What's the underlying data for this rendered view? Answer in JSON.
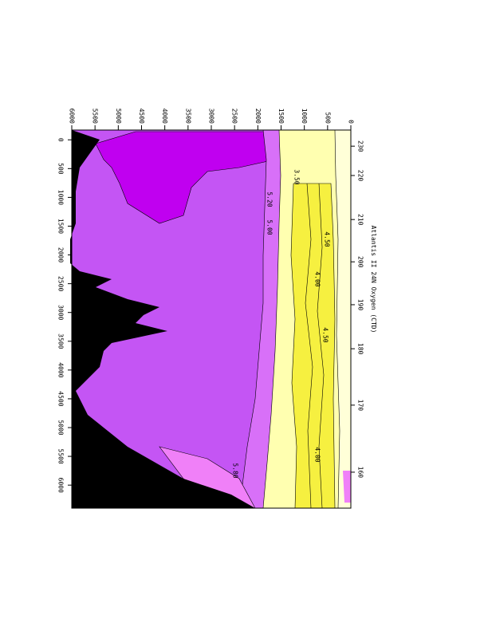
{
  "chart_data": {
    "type": "contour",
    "title": "Atlantis II 24N Oxygen (CTD)",
    "ylim": [
      0,
      6000
    ],
    "yticks": [
      0,
      500,
      1000,
      1500,
      2000,
      2500,
      3000,
      3500,
      4000,
      4500,
      5000,
      5500,
      6000
    ],
    "xlim": [
      -170,
      6400
    ],
    "xticks": [
      0,
      500,
      1000,
      1500,
      2000,
      2500,
      3000,
      3500,
      4000,
      4500,
      5000,
      5500,
      6000
    ],
    "x2ticks": [
      {
        "value": 110,
        "label": "230"
      },
      {
        "value": 620,
        "label": "220"
      },
      {
        "value": 1385,
        "label": "210"
      },
      {
        "value": 2120,
        "label": "200"
      },
      {
        "value": 2865,
        "label": "190"
      },
      {
        "value": 3630,
        "label": "180"
      },
      {
        "value": 4610,
        "label": "170"
      },
      {
        "value": 5775,
        "label": "160"
      }
    ],
    "contour_labels": [
      "3.50",
      "4.00",
      "4.50",
      "5.00",
      "5.20",
      "5.80",
      "4.00",
      "4.50"
    ]
  }
}
